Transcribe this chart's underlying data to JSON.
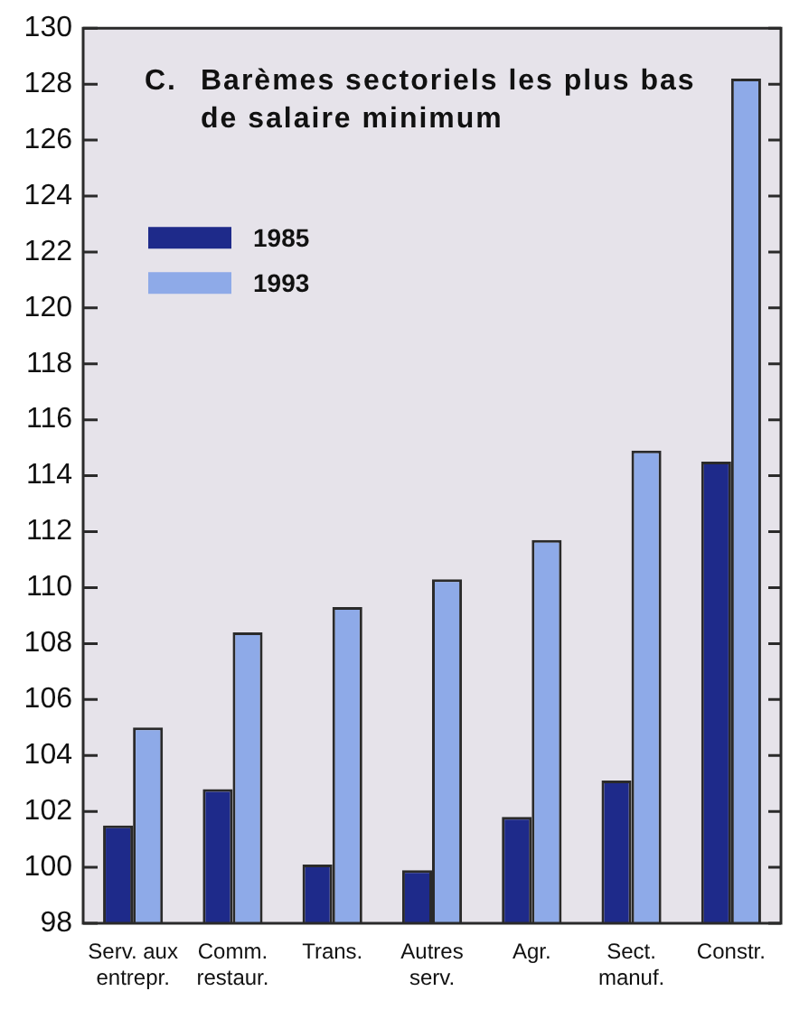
{
  "chart_data": {
    "type": "bar",
    "title": "C. Barèmes sectoriels les plus bas de salaire minimum",
    "categories": [
      "Serv. aux entrepr.",
      "Comm. restaur.",
      "Trans.",
      "Autres serv.",
      "Agr.",
      "Sect. manuf.",
      "Constr."
    ],
    "series": [
      {
        "name": "1985",
        "color": "#1e2a8a",
        "values": [
          101.5,
          102.8,
          100.1,
          99.9,
          101.8,
          103.1,
          114.5
        ]
      },
      {
        "name": "1993",
        "color": "#8eaae8",
        "values": [
          105.0,
          108.4,
          109.3,
          110.3,
          111.7,
          114.9,
          128.2
        ]
      }
    ],
    "ylim": [
      98,
      130
    ],
    "yticks": [
      98,
      100,
      102,
      104,
      106,
      108,
      110,
      112,
      114,
      116,
      118,
      120,
      122,
      124,
      126,
      128,
      130
    ],
    "grid": false,
    "legend": "top left"
  }
}
